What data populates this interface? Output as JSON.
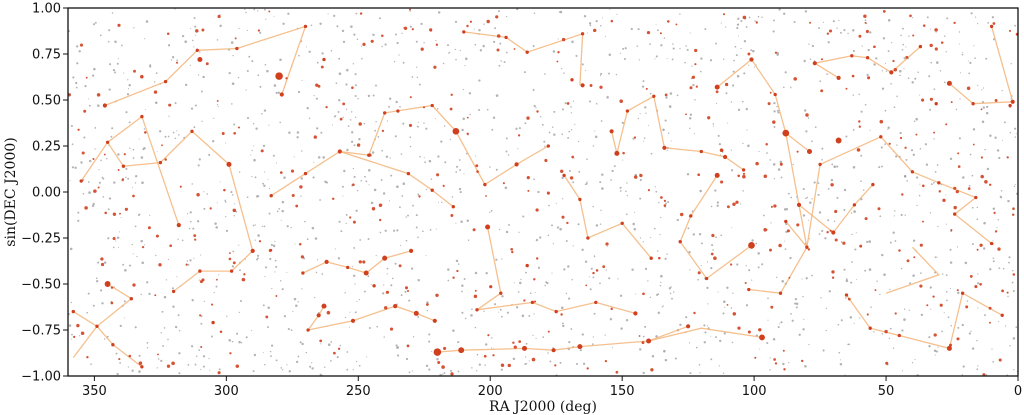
{
  "chart_data": {
    "type": "scatter",
    "title": "",
    "xlabel": "RA J2000 (deg)",
    "ylabel": "sin(DEC J2000)",
    "xlim": [
      360,
      0
    ],
    "ylim": [
      -1.0,
      1.0
    ],
    "x_ticks": [
      350,
      300,
      250,
      200,
      150,
      100,
      50,
      0
    ],
    "x_tick_labels": [
      "350",
      "300",
      "250",
      "200",
      "150",
      "100",
      "50",
      "0"
    ],
    "y_ticks": [
      1.0,
      0.75,
      0.5,
      0.25,
      0.0,
      -0.25,
      -0.5,
      -0.75,
      -1.0
    ],
    "y_tick_labels": [
      "1.00",
      "0.75",
      "0.50",
      "0.25",
      "0.00",
      "−0.25",
      "−0.50",
      "−0.75",
      "−1.00"
    ],
    "grid": false,
    "legend": "none",
    "colors": {
      "faint_stars": "#9a9a9a",
      "bright_stars": "#d0401e",
      "constellation_lines": "#f3b57a",
      "axes": "#111111"
    },
    "faint_star_count_approx": 1600,
    "bright_stars": [
      [
        280,
        0.63,
        9
      ],
      [
        213,
        0.33,
        8
      ],
      [
        101,
        0.72,
        5
      ],
      [
        88,
        0.32,
        8
      ],
      [
        68,
        0.28,
        7
      ],
      [
        79,
        0.22,
        6
      ],
      [
        83,
        -0.07,
        5
      ],
      [
        114,
        0.57,
        6
      ],
      [
        97,
        -0.79,
        7
      ],
      [
        101,
        -0.29,
        8
      ],
      [
        114,
        0.09,
        6
      ],
      [
        263,
        0.72,
        4
      ],
      [
        299,
        0.15,
        6
      ],
      [
        310,
        0.72,
        6
      ],
      [
        345,
        -0.5,
        7
      ],
      [
        279,
        0.53,
        5
      ],
      [
        247,
        -0.44,
        6
      ],
      [
        220,
        -0.87,
        9
      ],
      [
        211,
        -0.86,
        7
      ],
      [
        187,
        -0.85,
        6
      ],
      [
        176,
        -0.86,
        5
      ],
      [
        166,
        -0.84,
        6
      ],
      [
        140,
        -0.81,
        6
      ],
      [
        125,
        -0.73,
        5
      ],
      [
        152,
        0.21,
        6
      ],
      [
        154,
        0.33,
        5
      ],
      [
        165,
        0.86,
        4
      ],
      [
        201,
        -0.19,
        6
      ],
      [
        230,
        -0.32,
        5
      ],
      [
        186,
        -0.4,
        4
      ],
      [
        240,
        -0.36,
        6
      ],
      [
        265,
        -0.67,
        5
      ],
      [
        263,
        -0.62,
        6
      ],
      [
        252,
        -0.7,
        5
      ],
      [
        269,
        -0.75,
        4
      ],
      [
        305,
        -0.71,
        4
      ],
      [
        318,
        -0.18,
        5
      ],
      [
        325,
        0.16,
        4
      ],
      [
        339,
        0.14,
        4
      ],
      [
        345,
        0.27,
        4
      ],
      [
        346,
        0.47,
        5
      ],
      [
        323,
        0.6,
        4
      ],
      [
        311,
        0.77,
        4
      ],
      [
        296,
        0.78,
        4
      ],
      [
        270,
        0.9,
        4
      ],
      [
        240,
        0.43,
        4
      ],
      [
        235,
        0.44,
        4
      ],
      [
        222,
        0.47,
        4
      ],
      [
        210,
        0.87,
        4
      ],
      [
        194,
        0.84,
        4
      ],
      [
        186,
        0.76,
        4
      ],
      [
        169,
        0.61,
        4
      ],
      [
        165,
        0.58,
        5
      ],
      [
        148,
        0.44,
        4
      ],
      [
        138,
        0.52,
        4
      ],
      [
        134,
        0.24,
        5
      ],
      [
        120,
        0.22,
        4
      ],
      [
        111,
        0.19,
        5
      ],
      [
        104,
        0.12,
        4
      ],
      [
        68,
        0.62,
        5
      ],
      [
        77,
        0.7,
        5
      ],
      [
        63,
        0.74,
        4
      ],
      [
        57,
        0.73,
        4
      ],
      [
        48,
        0.65,
        5
      ],
      [
        37,
        0.79,
        4
      ],
      [
        26,
        0.59,
        6
      ],
      [
        17,
        0.48,
        4
      ],
      [
        2,
        0.49,
        5
      ],
      [
        10,
        0.9,
        4
      ],
      [
        3,
        0.47,
        4
      ],
      [
        52,
        0.3,
        4
      ],
      [
        31,
        0.48,
        4
      ],
      [
        40,
        0.11,
        4
      ],
      [
        30,
        0.05,
        4
      ],
      [
        16,
        -0.03,
        4
      ],
      [
        24,
        -0.12,
        4
      ],
      [
        10,
        -0.28,
        4
      ],
      [
        6,
        -0.67,
        4
      ],
      [
        21,
        -0.55,
        4
      ],
      [
        26,
        -0.85,
        6
      ],
      [
        45,
        -0.78,
        4
      ],
      [
        56,
        -0.74,
        4
      ],
      [
        65,
        -0.56,
        4
      ],
      [
        90,
        -0.55,
        4
      ],
      [
        102,
        -0.53,
        4
      ],
      [
        118,
        -0.47,
        4
      ],
      [
        145,
        -0.66,
        5
      ],
      [
        160,
        -0.6,
        4
      ],
      [
        175,
        -0.65,
        4
      ],
      [
        184,
        -0.6,
        4
      ],
      [
        196,
        -0.55,
        4
      ],
      [
        205,
        -0.64,
        4
      ],
      [
        221,
        -0.7,
        5
      ],
      [
        228,
        -0.66,
        6
      ],
      [
        236,
        -0.62,
        5
      ],
      [
        244,
        -0.51,
        4
      ],
      [
        254,
        -0.41,
        4
      ],
      [
        262,
        -0.38,
        5
      ],
      [
        271,
        -0.44,
        4
      ],
      [
        290,
        -0.32,
        5
      ],
      [
        298,
        -0.43,
        4
      ],
      [
        310,
        -0.43,
        4
      ],
      [
        320,
        -0.54,
        4
      ],
      [
        336,
        -0.58,
        4
      ],
      [
        349,
        -0.73,
        4
      ],
      [
        343,
        -0.83,
        4
      ],
      [
        332,
        -0.95,
        4
      ],
      [
        358,
        -0.65,
        4
      ],
      [
        355,
        0.06,
        4
      ],
      [
        332,
        0.41,
        4
      ],
      [
        313,
        0.33,
        4
      ],
      [
        283,
        -0.02,
        4
      ],
      [
        270,
        0.1,
        4
      ],
      [
        257,
        0.22,
        5
      ],
      [
        246,
        0.2,
        4
      ],
      [
        231,
        0.1,
        4
      ],
      [
        222,
        0.01,
        4
      ],
      [
        214,
        -0.08,
        4
      ],
      [
        202,
        0.04,
        4
      ],
      [
        190,
        0.15,
        5
      ],
      [
        178,
        0.25,
        4
      ],
      [
        172,
        0.09,
        4
      ],
      [
        166,
        -0.04,
        4
      ],
      [
        163,
        -0.25,
        4
      ],
      [
        150,
        -0.17,
        4
      ],
      [
        139,
        -0.36,
        4
      ],
      [
        128,
        -0.27,
        4
      ],
      [
        124,
        -0.13,
        4
      ],
      [
        88,
        -0.16,
        4
      ],
      [
        80,
        -0.3,
        4
      ],
      [
        70,
        -0.22,
        5
      ],
      [
        62,
        -0.07,
        4
      ],
      [
        55,
        0.04,
        4
      ],
      [
        75,
        0.15,
        4
      ],
      [
        92,
        0.53,
        4
      ]
    ],
    "constellation_lines": [
      [
        [
          213,
          0.33
        ],
        [
          222,
          0.47
        ],
        [
          240,
          0.43
        ],
        [
          246,
          0.2
        ],
        [
          257,
          0.22
        ]
      ],
      [
        [
          213,
          0.33
        ],
        [
          202,
          0.04
        ],
        [
          190,
          0.15
        ],
        [
          178,
          0.25
        ]
      ],
      [
        [
          279,
          0.53
        ],
        [
          270,
          0.9
        ],
        [
          296,
          0.78
        ],
        [
          311,
          0.77
        ],
        [
          323,
          0.6
        ],
        [
          346,
          0.47
        ]
      ],
      [
        [
          299,
          0.15
        ],
        [
          290,
          -0.32
        ],
        [
          298,
          -0.43
        ],
        [
          310,
          -0.43
        ],
        [
          320,
          -0.54
        ]
      ],
      [
        [
          299,
          0.15
        ],
        [
          313,
          0.33
        ],
        [
          325,
          0.16
        ],
        [
          339,
          0.14
        ],
        [
          345,
          0.27
        ]
      ],
      [
        [
          114,
          0.57
        ],
        [
          101,
          0.72
        ],
        [
          92,
          0.53
        ],
        [
          88,
          0.32
        ],
        [
          79,
          0.22
        ]
      ],
      [
        [
          88,
          0.32
        ],
        [
          83,
          -0.07
        ],
        [
          70,
          -0.22
        ],
        [
          62,
          -0.07
        ],
        [
          55,
          0.04
        ]
      ],
      [
        [
          83,
          -0.07
        ],
        [
          80,
          -0.3
        ],
        [
          90,
          -0.55
        ],
        [
          102,
          -0.53
        ]
      ],
      [
        [
          101,
          -0.29
        ],
        [
          118,
          -0.47
        ],
        [
          128,
          -0.27
        ],
        [
          124,
          -0.13
        ],
        [
          114,
          0.09
        ]
      ],
      [
        [
          68,
          0.62
        ],
        [
          77,
          0.7
        ],
        [
          63,
          0.74
        ],
        [
          57,
          0.73
        ],
        [
          48,
          0.65
        ],
        [
          37,
          0.79
        ]
      ],
      [
        [
          26,
          0.59
        ],
        [
          17,
          0.48
        ],
        [
          2,
          0.49
        ],
        [
          10,
          0.9
        ]
      ],
      [
        [
          52,
          0.3
        ],
        [
          40,
          0.11
        ],
        [
          30,
          0.05
        ],
        [
          16,
          -0.03
        ],
        [
          24,
          -0.12
        ],
        [
          10,
          -0.28
        ]
      ],
      [
        [
          220,
          -0.87
        ],
        [
          211,
          -0.86
        ],
        [
          187,
          -0.85
        ],
        [
          176,
          -0.86
        ],
        [
          166,
          -0.84
        ],
        [
          140,
          -0.81
        ],
        [
          125,
          -0.73
        ]
      ],
      [
        [
          230,
          -0.32
        ],
        [
          240,
          -0.36
        ],
        [
          247,
          -0.44
        ],
        [
          254,
          -0.41
        ],
        [
          262,
          -0.38
        ],
        [
          271,
          -0.44
        ]
      ],
      [
        [
          263,
          -0.62
        ],
        [
          265,
          -0.67
        ],
        [
          269,
          -0.75
        ],
        [
          252,
          -0.7
        ],
        [
          236,
          -0.62
        ],
        [
          228,
          -0.66
        ],
        [
          221,
          -0.7
        ]
      ],
      [
        [
          201,
          -0.19
        ],
        [
          196,
          -0.55
        ],
        [
          205,
          -0.64
        ],
        [
          184,
          -0.6
        ],
        [
          175,
          -0.65
        ],
        [
          160,
          -0.6
        ],
        [
          145,
          -0.66
        ]
      ],
      [
        [
          166,
          0.58
        ],
        [
          165,
          0.86
        ],
        [
          186,
          0.76
        ],
        [
          194,
          0.84
        ],
        [
          210,
          0.87
        ]
      ],
      [
        [
          154,
          0.33
        ],
        [
          152,
          0.21
        ],
        [
          148,
          0.44
        ],
        [
          138,
          0.52
        ],
        [
          134,
          0.24
        ],
        [
          120,
          0.22
        ],
        [
          111,
          0.19
        ],
        [
          104,
          0.12
        ]
      ],
      [
        [
          345,
          -0.5
        ],
        [
          336,
          -0.58
        ],
        [
          349,
          -0.73
        ],
        [
          343,
          -0.83
        ],
        [
          332,
          -0.95
        ]
      ],
      [
        [
          318,
          -0.18
        ],
        [
          332,
          0.41
        ],
        [
          345,
          0.27
        ],
        [
          355,
          0.06
        ]
      ],
      [
        [
          6,
          -0.67
        ],
        [
          21,
          -0.55
        ],
        [
          26,
          -0.85
        ],
        [
          45,
          -0.78
        ],
        [
          56,
          -0.74
        ],
        [
          65,
          -0.56
        ]
      ],
      [
        [
          283,
          -0.02
        ],
        [
          270,
          0.1
        ],
        [
          257,
          0.22
        ],
        [
          231,
          0.1
        ],
        [
          222,
          0.01
        ],
        [
          214,
          -0.08
        ]
      ],
      [
        [
          172,
          0.09
        ],
        [
          166,
          -0.04
        ],
        [
          163,
          -0.25
        ],
        [
          150,
          -0.17
        ],
        [
          139,
          -0.36
        ]
      ],
      [
        [
          88,
          -0.16
        ],
        [
          80,
          -0.3
        ],
        [
          75,
          0.15
        ],
        [
          52,
          0.3
        ]
      ],
      [
        [
          358,
          -0.65
        ],
        [
          349,
          -0.73
        ],
        [
          358,
          -0.9
        ]
      ],
      [
        [
          97,
          -0.79
        ],
        [
          120,
          -0.74
        ],
        [
          140,
          -0.81
        ]
      ],
      [
        [
          40,
          -0.3
        ],
        [
          30,
          -0.45
        ],
        [
          50,
          -0.55
        ]
      ]
    ]
  }
}
